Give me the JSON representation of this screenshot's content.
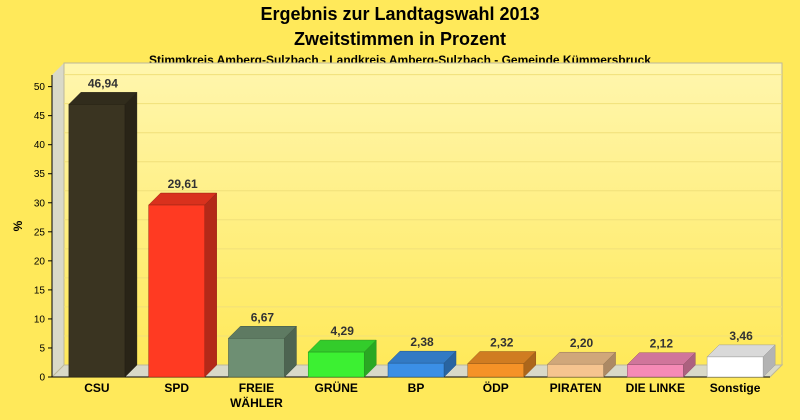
{
  "chart_data": {
    "type": "bar",
    "title": "Ergebnis zur Landtagswahl 2013",
    "subtitle": "Zweitstimmen in Prozent",
    "caption": "Stimmkreis Amberg-Sulzbach - Landkreis Amberg-Sulzbach - Gemeinde Kümmersbruck",
    "ylabel": "%",
    "xlabel": "",
    "ylim": [
      0,
      52
    ],
    "yticks": [
      0,
      5,
      10,
      15,
      20,
      25,
      30,
      35,
      40,
      45,
      50
    ],
    "grid": true,
    "categories": [
      "CSU",
      "SPD",
      "FREIE WÄHLER",
      "GRÜNE",
      "BP",
      "ÖDP",
      "PIRATEN",
      "DIE LINKE",
      "Sonstige"
    ],
    "values": [
      46.94,
      29.61,
      6.67,
      4.29,
      2.38,
      2.32,
      2.2,
      2.12,
      3.46
    ],
    "value_labels": [
      "46,94",
      "29,61",
      "6,67",
      "4,29",
      "2,38",
      "2,32",
      "2,20",
      "2,12",
      "3,46"
    ],
    "colors": [
      "#3a3421",
      "#ff3a22",
      "#6e8f73",
      "#3cf032",
      "#3b8fe6",
      "#f59227",
      "#f5c48f",
      "#f58ab6",
      "#ffffff"
    ]
  }
}
